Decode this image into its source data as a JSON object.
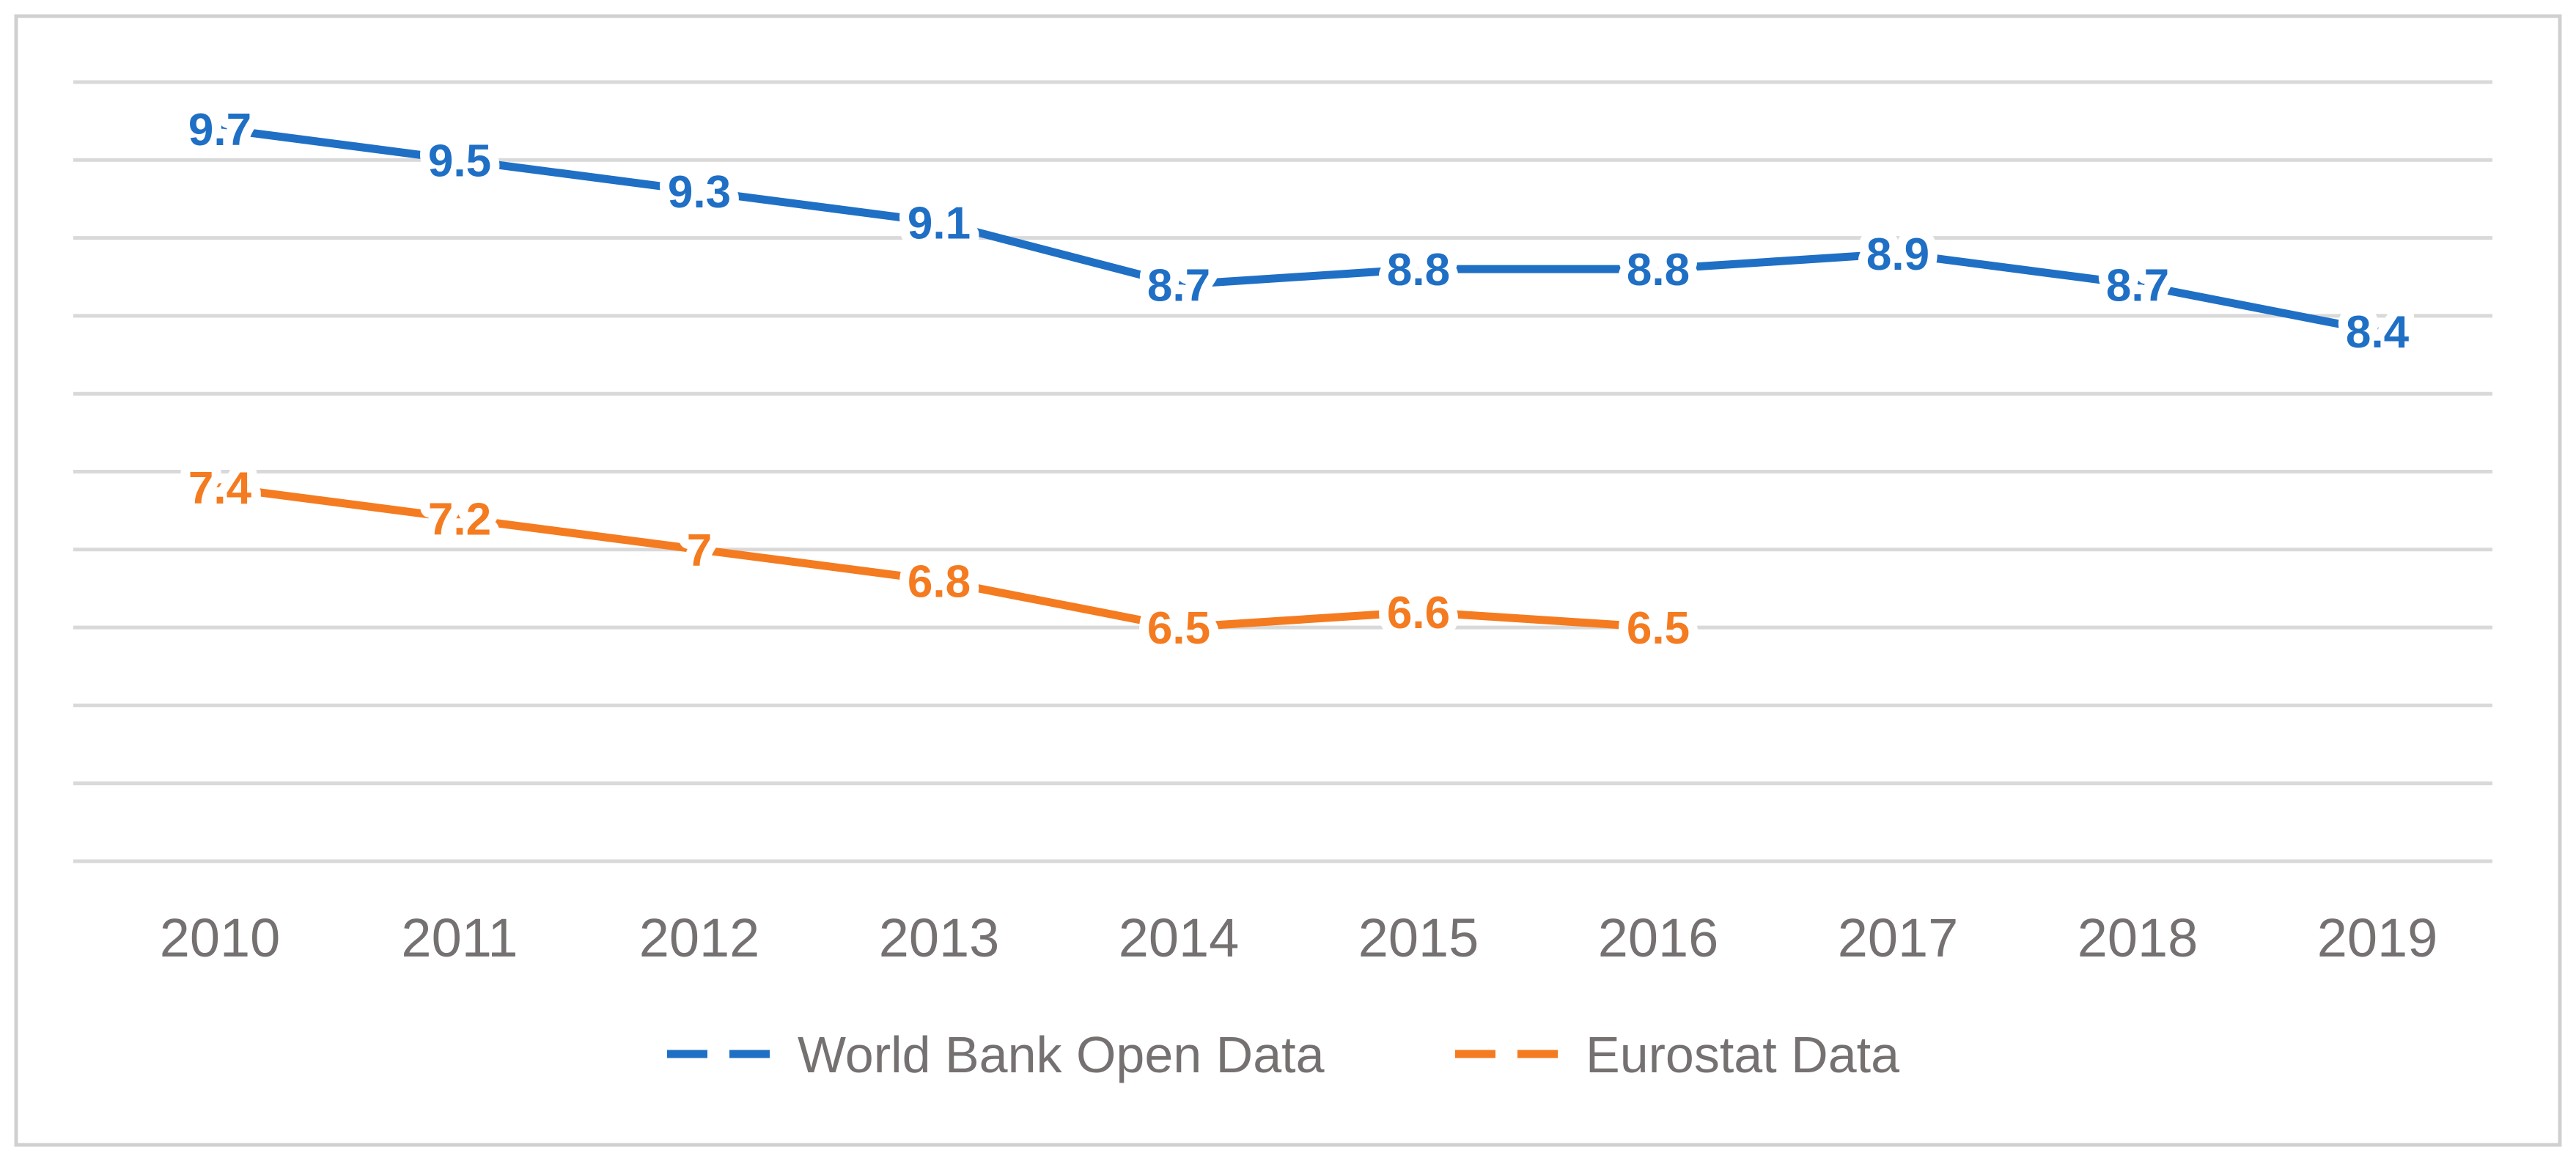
{
  "chart_data": {
    "type": "line",
    "title": "",
    "xlabel": "",
    "ylabel": "",
    "x": [
      "2010",
      "2011",
      "2012",
      "2013",
      "2014",
      "2015",
      "2016",
      "2017",
      "2018",
      "2019"
    ],
    "ylim": [
      5,
      10
    ],
    "y_gridlines": [
      5,
      5.5,
      6,
      6.5,
      7,
      7.5,
      8,
      8.5,
      9,
      9.5,
      10
    ],
    "grid": true,
    "y_tick_labels_shown": false,
    "legend_position": "bottom",
    "data_labels_shown": true,
    "series": [
      {
        "name": "World Bank Open Data",
        "color": "#1f6fc5",
        "values": [
          9.7,
          9.5,
          9.3,
          9.1,
          8.7,
          8.8,
          8.8,
          8.9,
          8.7,
          8.4
        ],
        "labels": [
          "9.7",
          "9.5",
          "9.3",
          "9.1",
          "8.7",
          "8.8",
          "8.8",
          "8.9",
          "8.7",
          "8.4"
        ]
      },
      {
        "name": "Eurostat Data",
        "color": "#f47b20",
        "values": [
          7.4,
          7.2,
          7.0,
          6.8,
          6.5,
          6.6,
          6.5,
          null,
          null,
          null
        ],
        "labels": [
          "7.4",
          "7.2",
          "7",
          "6.8",
          "6.5",
          "6.6",
          "6.5",
          null,
          null,
          null
        ]
      }
    ]
  },
  "colors": {
    "frame": "#d0d0d0",
    "gridline": "#d9d9d9",
    "text": "#767171",
    "background": "#ffffff"
  }
}
